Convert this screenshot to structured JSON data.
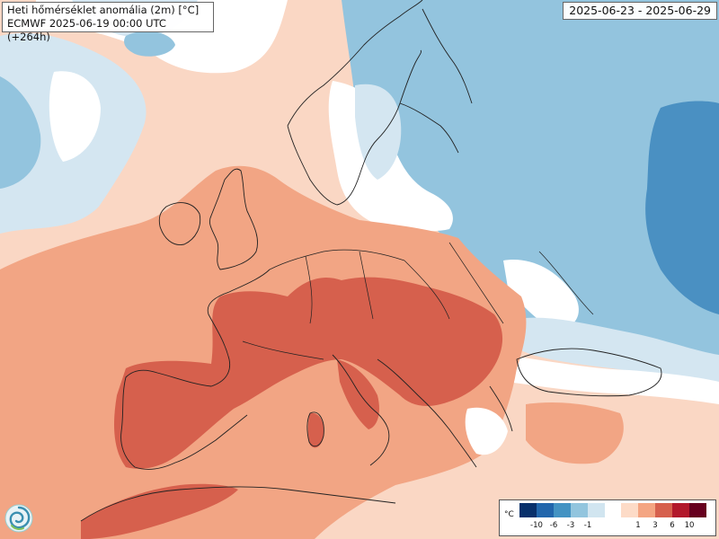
{
  "title": {
    "line1": "Heti hőmérséklet anomália (2m) [°C]",
    "line2": "ECMWF 2025-06-19 00:00 UTC (+264h)"
  },
  "date_range": "2025-06-23 - 2025-06-29",
  "legend": {
    "unit": "°C",
    "cold_bins": [
      {
        "color": "#08306b",
        "label": "-10"
      },
      {
        "color": "#2166ac",
        "label": "-6"
      },
      {
        "color": "#4393c3",
        "label": "-3"
      },
      {
        "color": "#92c5de",
        "label": "-1"
      },
      {
        "color": "#d1e5f0",
        "label": ""
      }
    ],
    "warm_bins": [
      {
        "color": "#fddbc7",
        "label": "1"
      },
      {
        "color": "#f4a582",
        "label": "3"
      },
      {
        "color": "#d6604d",
        "label": "6"
      },
      {
        "color": "#b2182b",
        "label": "10"
      },
      {
        "color": "#67001f",
        "label": ""
      }
    ]
  },
  "map_colors": {
    "warm_light": "#fad7c4",
    "warm_mid": "#f2a584",
    "warm_strong": "#d6604d",
    "neutral": "#ffffff",
    "cold_faint": "#d4e6f1",
    "cold_light": "#93c4de",
    "cold_mid": "#4a90c2",
    "border": "#222222"
  },
  "logo_icon": "swirl-logo-icon"
}
